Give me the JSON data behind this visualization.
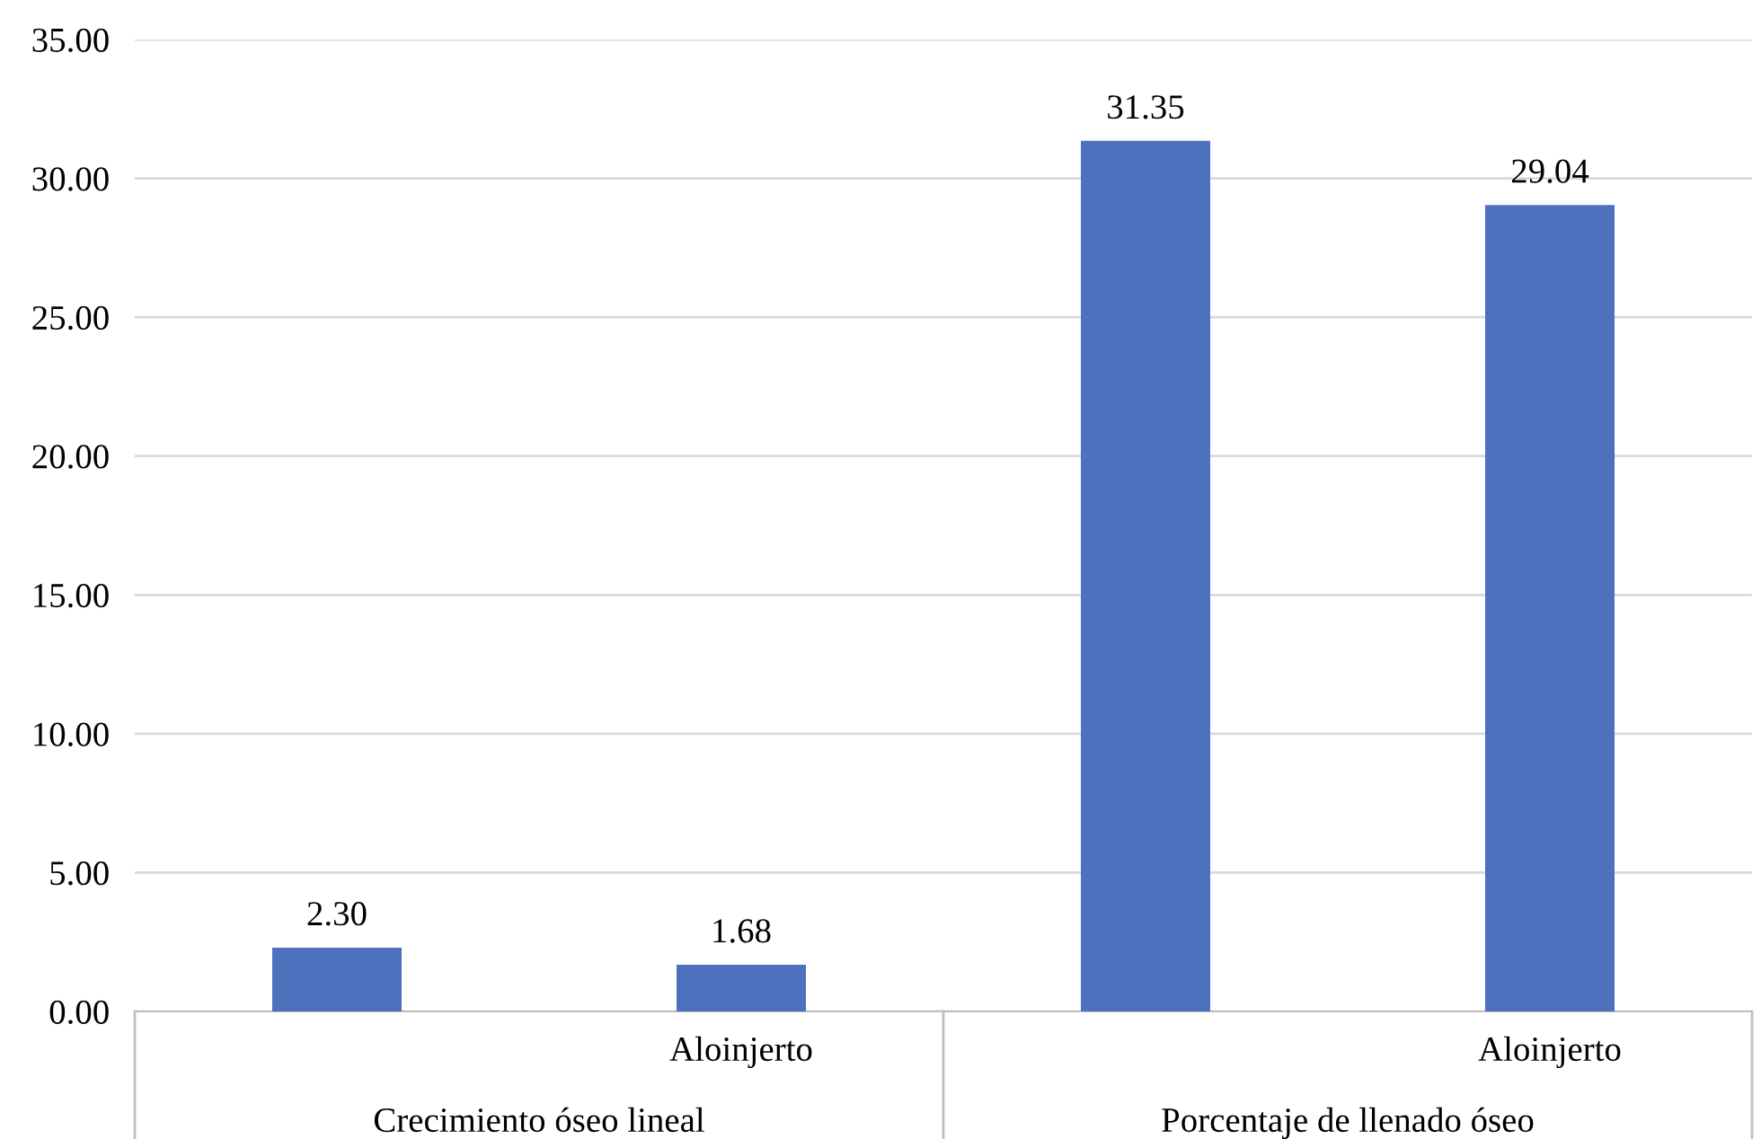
{
  "chart_data": {
    "type": "bar",
    "categories": [
      null,
      "Aloinjerto",
      null,
      "Aloinjerto"
    ],
    "values": [
      2.3,
      1.68,
      31.35,
      29.04
    ],
    "value_labels": [
      "2.30",
      "1.68",
      "31.35",
      "29.04"
    ],
    "color": "#4e71be",
    "ylim": [
      0,
      35
    ],
    "yticks": [
      {
        "value": 0,
        "label": "0.00"
      },
      {
        "value": 5,
        "label": "5.00"
      },
      {
        "value": 10,
        "label": "10.00"
      },
      {
        "value": 15,
        "label": "15.00"
      },
      {
        "value": 20,
        "label": "20.00"
      },
      {
        "value": 25,
        "label": "25.00"
      },
      {
        "value": 30,
        "label": "30.00"
      },
      {
        "value": 35,
        "label": "35.00"
      }
    ],
    "grid": "y",
    "annotations": [
      "Crecimiento óseo lineal",
      "Porcentaje de llenado óseo"
    ]
  }
}
